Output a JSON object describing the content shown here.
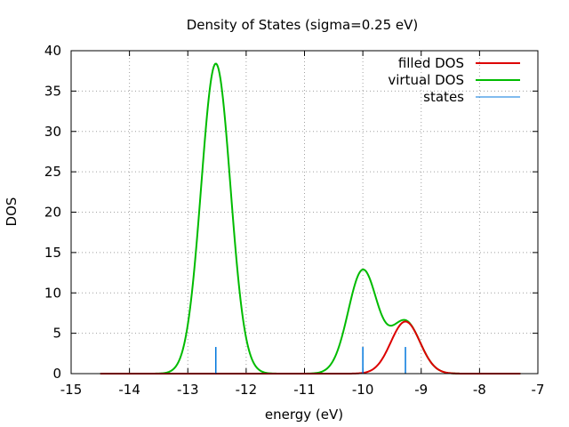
{
  "chart_data": {
    "type": "line",
    "title": "Density of States (sigma=0.25 eV)",
    "xlabel": "energy (eV)",
    "ylabel": "DOS",
    "xlim": [
      -15,
      -7
    ],
    "ylim": [
      0,
      40
    ],
    "xticks": [
      -15,
      -14,
      -13,
      -12,
      -11,
      -10,
      -9,
      -8,
      -7
    ],
    "yticks": [
      0,
      5,
      10,
      15,
      20,
      25,
      30,
      35,
      40
    ],
    "xtick_labels": [
      "-15",
      "-14",
      "-13",
      "-12",
      "-11",
      "-10",
      "-9",
      "-8",
      "-7"
    ],
    "ytick_labels": [
      "0",
      "5",
      "10",
      "15",
      "20",
      "25",
      "30",
      "35",
      "40"
    ],
    "grid": true,
    "legend_position": "top-right",
    "sigma": 0.25,
    "x_range": [
      -14.5,
      -7.3
    ],
    "series": [
      {
        "name": "filled DOS",
        "kind": "line",
        "color": "#dd0000",
        "peaks": [
          {
            "center": -9.27,
            "height": 6.45
          }
        ]
      },
      {
        "name": "virtual DOS",
        "kind": "line",
        "color": "#00bb00",
        "peaks": [
          {
            "center": -12.52,
            "height": 38.4
          },
          {
            "center": -10.0,
            "height": 12.8
          },
          {
            "center": -9.27,
            "height": 6.45
          }
        ]
      },
      {
        "name": "states",
        "kind": "impulses",
        "color": "#0077dd",
        "x": [
          -12.52,
          -10.0,
          -9.27
        ],
        "values": [
          3.3,
          3.3,
          3.3
        ]
      }
    ]
  }
}
